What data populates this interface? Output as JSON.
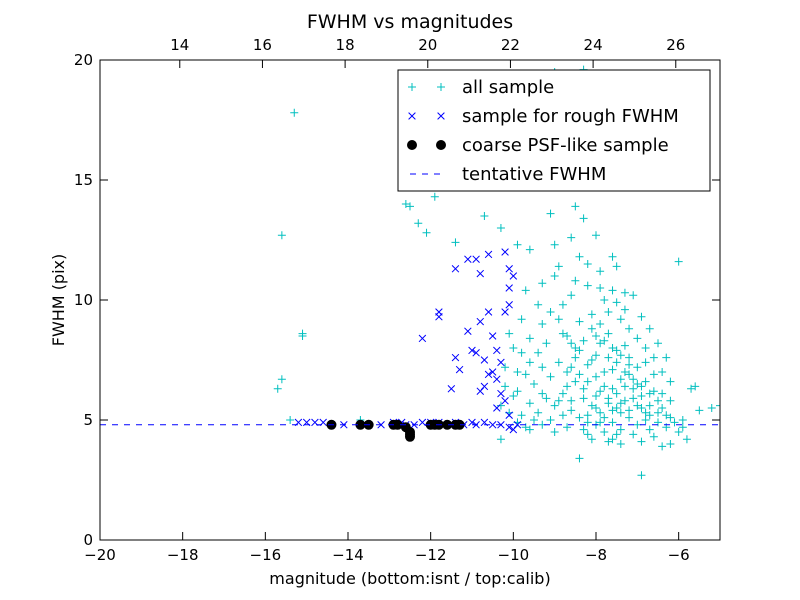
{
  "chart_data": {
    "type": "scatter",
    "title": "FWHM vs magnitudes",
    "xlabel": "magnitude (bottom:isnt / top:calib)",
    "ylabel": "FWHM (pix)",
    "xlim": [
      -20,
      -5
    ],
    "ylim": [
      0,
      20
    ],
    "top_xlim": [
      12.07,
      27.07
    ],
    "x_ticks": [
      -20,
      -18,
      -16,
      -14,
      -12,
      -10,
      -8,
      -6
    ],
    "x_tick_labels": [
      "−20",
      "−18",
      "−16",
      "−14",
      "−12",
      "−10",
      "−8",
      "−6"
    ],
    "top_x_ticks": [
      14,
      16,
      18,
      20,
      22,
      24,
      26
    ],
    "top_x_tick_labels": [
      "14",
      "16",
      "18",
      "20",
      "22",
      "24",
      "26"
    ],
    "y_ticks": [
      0,
      5,
      10,
      15,
      20
    ],
    "y_tick_labels": [
      "0",
      "5",
      "10",
      "15",
      "20"
    ],
    "grid": false,
    "legend_position": "top-right",
    "series": [
      {
        "name": "all sample",
        "marker": "plus",
        "color": "#00bfbf",
        "points": [
          [
            -15.3,
            17.8
          ],
          [
            -15.6,
            12.7
          ],
          [
            -15.1,
            8.6
          ],
          [
            -15.1,
            8.5
          ],
          [
            -15.6,
            6.7
          ],
          [
            -15.7,
            6.3
          ],
          [
            -15.4,
            5.0
          ],
          [
            -13.7,
            5.0
          ],
          [
            -12.4,
            15.5
          ],
          [
            -12.6,
            14.0
          ],
          [
            -12.5,
            13.9
          ],
          [
            -12.3,
            13.2
          ],
          [
            -12.1,
            12.8
          ],
          [
            -11.9,
            14.3
          ],
          [
            -11.4,
            12.4
          ],
          [
            -10.7,
            13.5
          ],
          [
            -10.3,
            13.0
          ],
          [
            -9.9,
            12.3
          ],
          [
            -9.6,
            12.1
          ],
          [
            -9.1,
            13.6
          ],
          [
            -8.6,
            12.6
          ],
          [
            -8.3,
            13.4
          ],
          [
            -7.6,
            11.8
          ],
          [
            -6.0,
            11.6
          ],
          [
            -7.8,
            14.8
          ],
          [
            -8.9,
            16.2
          ],
          [
            -9.4,
            17.5
          ],
          [
            -9.0,
            19.5
          ],
          [
            -8.3,
            19.6
          ],
          [
            -8.0,
            17.2
          ],
          [
            -7.7,
            17.7
          ],
          [
            -10.1,
            15.7
          ],
          [
            -5.7,
            6.3
          ],
          [
            -5.6,
            6.4
          ],
          [
            -5.5,
            5.4
          ],
          [
            -5.2,
            5.5
          ],
          [
            -5.0,
            5.6
          ],
          [
            -5.9,
            4.7
          ],
          [
            -6.4,
            3.9
          ],
          [
            -6.9,
            2.7
          ],
          [
            -8.4,
            3.4
          ],
          [
            -10.3,
            4.2
          ],
          [
            -9.0,
            11.0
          ],
          [
            -8.6,
            10.2
          ],
          [
            -8.2,
            10.6
          ],
          [
            -7.8,
            10.0
          ],
          [
            -7.3,
            9.6
          ],
          [
            -9.4,
            9.8
          ],
          [
            -9.7,
            10.4
          ],
          [
            -8.8,
            8.6
          ],
          [
            -8.4,
            9.1
          ],
          [
            -8.1,
            8.8
          ],
          [
            -7.9,
            8.2
          ],
          [
            -7.7,
            8.6
          ],
          [
            -7.5,
            7.9
          ],
          [
            -7.3,
            8.1
          ],
          [
            -7.2,
            7.6
          ],
          [
            -7.0,
            7.2
          ],
          [
            -6.8,
            7.4
          ],
          [
            -6.6,
            6.9
          ],
          [
            -6.4,
            6.1
          ],
          [
            -6.2,
            5.8
          ],
          [
            -8.0,
            7.7
          ],
          [
            -8.2,
            7.3
          ],
          [
            -8.5,
            7.6
          ],
          [
            -8.7,
            7.0
          ],
          [
            -8.9,
            7.4
          ],
          [
            -9.1,
            6.8
          ],
          [
            -9.3,
            7.2
          ],
          [
            -9.5,
            6.5
          ],
          [
            -9.7,
            6.9
          ],
          [
            -9.9,
            6.2
          ],
          [
            -7.6,
            7.1
          ],
          [
            -7.4,
            6.7
          ],
          [
            -7.8,
            6.4
          ],
          [
            -8.0,
            6.0
          ],
          [
            -8.3,
            6.3
          ],
          [
            -8.6,
            5.8
          ],
          [
            -8.8,
            6.1
          ],
          [
            -9.0,
            5.6
          ],
          [
            -9.2,
            5.9
          ],
          [
            -9.4,
            5.3
          ],
          [
            -9.6,
            5.7
          ],
          [
            -9.8,
            5.2
          ],
          [
            -7.1,
            6.3
          ],
          [
            -6.9,
            6.0
          ],
          [
            -7.3,
            5.8
          ],
          [
            -7.5,
            5.5
          ],
          [
            -7.7,
            5.9
          ],
          [
            -7.9,
            5.3
          ],
          [
            -8.1,
            5.6
          ],
          [
            -8.4,
            5.1
          ],
          [
            -8.6,
            5.4
          ],
          [
            -6.7,
            5.6
          ],
          [
            -6.5,
            5.3
          ],
          [
            -6.8,
            5.0
          ],
          [
            -7.0,
            4.8
          ],
          [
            -7.2,
            5.1
          ],
          [
            -7.4,
            4.6
          ],
          [
            -7.6,
            4.9
          ],
          [
            -7.8,
            4.5
          ],
          [
            -8.0,
            4.8
          ],
          [
            -8.2,
            4.4
          ],
          [
            -6.3,
            4.7
          ],
          [
            -6.6,
            4.3
          ],
          [
            -6.9,
            4.1
          ],
          [
            -7.1,
            4.4
          ],
          [
            -7.4,
            4.0
          ],
          [
            -7.6,
            4.2
          ],
          [
            -6.0,
            4.5
          ],
          [
            -5.8,
            4.2
          ],
          [
            -6.2,
            4.0
          ],
          [
            -8.7,
            4.7
          ],
          [
            -9.0,
            4.5
          ],
          [
            -9.3,
            4.8
          ],
          [
            -9.6,
            4.6
          ],
          [
            -9.9,
            4.9
          ],
          [
            -10.1,
            5.3
          ],
          [
            -10.0,
            6.0
          ],
          [
            -9.9,
            7.0
          ],
          [
            -10.0,
            8.0
          ],
          [
            -9.6,
            8.4
          ],
          [
            -9.3,
            9.0
          ],
          [
            -9.1,
            9.5
          ],
          [
            -8.8,
            9.8
          ],
          [
            -8.5,
            10.8
          ],
          [
            -8.2,
            11.5
          ],
          [
            -7.9,
            11.2
          ],
          [
            -7.6,
            10.4
          ],
          [
            -7.4,
            9.2
          ],
          [
            -7.2,
            8.8
          ],
          [
            -7.0,
            8.4
          ],
          [
            -6.8,
            8.0
          ],
          [
            -6.6,
            7.6
          ],
          [
            -6.4,
            7.0
          ],
          [
            -6.2,
            6.6
          ],
          [
            -8.1,
            9.4
          ],
          [
            -7.9,
            9.0
          ],
          [
            -7.7,
            9.5
          ],
          [
            -7.5,
            9.9
          ],
          [
            -7.3,
            10.3
          ],
          [
            -8.3,
            8.3
          ],
          [
            -8.5,
            8.0
          ],
          [
            -8.7,
            8.5
          ],
          [
            -8.9,
            9.2
          ],
          [
            -9.2,
            8.2
          ],
          [
            -9.4,
            7.8
          ],
          [
            -9.6,
            7.4
          ],
          [
            -9.8,
            7.8
          ],
          [
            -8.0,
            6.8
          ],
          [
            -7.8,
            7.0
          ],
          [
            -7.6,
            6.3
          ],
          [
            -7.4,
            5.3
          ],
          [
            -7.2,
            6.9
          ],
          [
            -7.0,
            6.5
          ],
          [
            -6.8,
            6.6
          ],
          [
            -6.6,
            6.2
          ],
          [
            -6.4,
            5.5
          ],
          [
            -6.2,
            5.1
          ],
          [
            -6.1,
            4.9
          ],
          [
            -8.3,
            5.9
          ],
          [
            -8.5,
            6.6
          ],
          [
            -8.7,
            6.4
          ],
          [
            -8.9,
            5.8
          ],
          [
            -9.1,
            5.0
          ],
          [
            -9.3,
            6.1
          ],
          [
            -9.5,
            5.0
          ],
          [
            -9.7,
            4.7
          ],
          [
            -8.8,
            5.2
          ],
          [
            -8.2,
            4.9
          ],
          [
            -7.5,
            4.4
          ],
          [
            -7.9,
            4.9
          ],
          [
            -8.1,
            4.2
          ],
          [
            -8.3,
            4.6
          ],
          [
            -7.7,
            4.1
          ],
          [
            -6.7,
            4.6
          ],
          [
            -6.5,
            4.9
          ],
          [
            -6.3,
            5.2
          ],
          [
            -5.9,
            5.0
          ],
          [
            -8.0,
            8.5
          ],
          [
            -7.8,
            8.3
          ],
          [
            -7.6,
            8.0
          ],
          [
            -7.4,
            7.7
          ],
          [
            -7.2,
            7.3
          ],
          [
            -8.1,
            7.5
          ],
          [
            -8.4,
            7.9
          ],
          [
            -8.6,
            8.2
          ],
          [
            -7.7,
            7.6
          ],
          [
            -7.5,
            7.4
          ],
          [
            -7.3,
            7.0
          ],
          [
            -7.1,
            6.7
          ],
          [
            -6.9,
            6.4
          ],
          [
            -6.7,
            6.1
          ],
          [
            -6.5,
            5.8
          ],
          [
            -8.2,
            6.6
          ],
          [
            -8.4,
            6.9
          ],
          [
            -8.6,
            7.2
          ],
          [
            -7.9,
            6.2
          ],
          [
            -7.7,
            5.7
          ],
          [
            -7.5,
            6.1
          ],
          [
            -7.3,
            6.4
          ],
          [
            -7.1,
            5.9
          ],
          [
            -6.9,
            5.5
          ],
          [
            -6.7,
            5.2
          ],
          [
            -8.0,
            5.5
          ],
          [
            -8.2,
            5.2
          ],
          [
            -7.8,
            5.1
          ],
          [
            -7.6,
            5.4
          ],
          [
            -7.4,
            5.7
          ],
          [
            -7.2,
            5.4
          ],
          [
            -7.0,
            5.6
          ],
          [
            -6.8,
            5.3
          ],
          [
            -7.9,
            10.5
          ],
          [
            -8.4,
            11.8
          ],
          [
            -8.9,
            11.4
          ],
          [
            -9.3,
            10.7
          ],
          [
            -9.8,
            9.2
          ],
          [
            -10.1,
            8.6
          ],
          [
            -10.2,
            7.2
          ],
          [
            -10.2,
            6.4
          ],
          [
            -10.3,
            5.6
          ],
          [
            -9.0,
            12.3
          ],
          [
            -8.5,
            13.9
          ],
          [
            -9.2,
            14.8
          ],
          [
            -9.6,
            15.3
          ],
          [
            -8.0,
            12.7
          ],
          [
            -7.5,
            11.4
          ],
          [
            -7.1,
            10.2
          ],
          [
            -6.9,
            9.3
          ],
          [
            -6.7,
            8.8
          ],
          [
            -6.5,
            8.2
          ],
          [
            -6.3,
            7.6
          ]
        ]
      },
      {
        "name": "sample for rough FWHM",
        "marker": "x",
        "color": "#0000ff",
        "points": [
          [
            -15.2,
            4.9
          ],
          [
            -15.0,
            4.9
          ],
          [
            -14.8,
            4.9
          ],
          [
            -14.6,
            4.9
          ],
          [
            -14.4,
            4.8
          ],
          [
            -14.1,
            4.8
          ],
          [
            -13.7,
            4.8
          ],
          [
            -13.5,
            4.8
          ],
          [
            -13.2,
            4.8
          ],
          [
            -12.9,
            4.9
          ],
          [
            -12.7,
            4.9
          ],
          [
            -12.6,
            4.8
          ],
          [
            -12.4,
            4.8
          ],
          [
            -12.2,
            4.9
          ],
          [
            -12.0,
            4.9
          ],
          [
            -11.8,
            4.9
          ],
          [
            -11.6,
            4.8
          ],
          [
            -11.4,
            4.9
          ],
          [
            -11.2,
            4.8
          ],
          [
            -11.0,
            4.9
          ],
          [
            -10.9,
            4.8
          ],
          [
            -10.7,
            4.9
          ],
          [
            -10.5,
            4.8
          ],
          [
            -10.3,
            4.8
          ],
          [
            -10.1,
            4.7
          ],
          [
            -10.0,
            4.6
          ],
          [
            -9.9,
            4.8
          ],
          [
            -12.2,
            8.4
          ],
          [
            -11.4,
            7.6
          ],
          [
            -11.3,
            7.1
          ],
          [
            -11.5,
            6.3
          ],
          [
            -11.8,
            9.5
          ],
          [
            -11.8,
            9.3
          ],
          [
            -11.4,
            11.3
          ],
          [
            -11.1,
            11.7
          ],
          [
            -10.9,
            11.7
          ],
          [
            -10.8,
            11.1
          ],
          [
            -10.6,
            11.9
          ],
          [
            -10.6,
            9.5
          ],
          [
            -10.5,
            8.5
          ],
          [
            -10.4,
            7.9
          ],
          [
            -10.7,
            7.5
          ],
          [
            -10.9,
            7.8
          ],
          [
            -11.0,
            7.9
          ],
          [
            -11.1,
            8.7
          ],
          [
            -10.8,
            9.1
          ],
          [
            -10.5,
            7.0
          ],
          [
            -10.4,
            6.7
          ],
          [
            -10.7,
            6.4
          ],
          [
            -10.3,
            6.1
          ],
          [
            -10.2,
            5.8
          ],
          [
            -10.4,
            5.5
          ],
          [
            -10.1,
            5.2
          ],
          [
            -10.2,
            9.5
          ],
          [
            -10.1,
            9.8
          ],
          [
            -10.1,
            10.5
          ],
          [
            -10.1,
            11.3
          ],
          [
            -10.2,
            12.0
          ],
          [
            -10.0,
            11.0
          ],
          [
            -10.3,
            7.4
          ],
          [
            -10.6,
            6.9
          ],
          [
            -10.8,
            6.2
          ]
        ]
      },
      {
        "name": "coarse PSF-like sample",
        "marker": "circle",
        "color": "#000000",
        "points": [
          [
            -14.4,
            4.8
          ],
          [
            -13.7,
            4.8
          ],
          [
            -13.5,
            4.8
          ],
          [
            -12.9,
            4.8
          ],
          [
            -12.8,
            4.8
          ],
          [
            -12.6,
            4.7
          ],
          [
            -12.5,
            4.5
          ],
          [
            -12.5,
            4.4
          ],
          [
            -12.5,
            4.3
          ],
          [
            -12.0,
            4.8
          ],
          [
            -11.9,
            4.8
          ],
          [
            -11.8,
            4.8
          ],
          [
            -11.6,
            4.8
          ],
          [
            -11.4,
            4.8
          ],
          [
            -11.3,
            4.8
          ]
        ]
      },
      {
        "name": "tentative FWHM",
        "marker": "dashed-line",
        "color": "#0000ff",
        "y": 4.8
      }
    ]
  }
}
